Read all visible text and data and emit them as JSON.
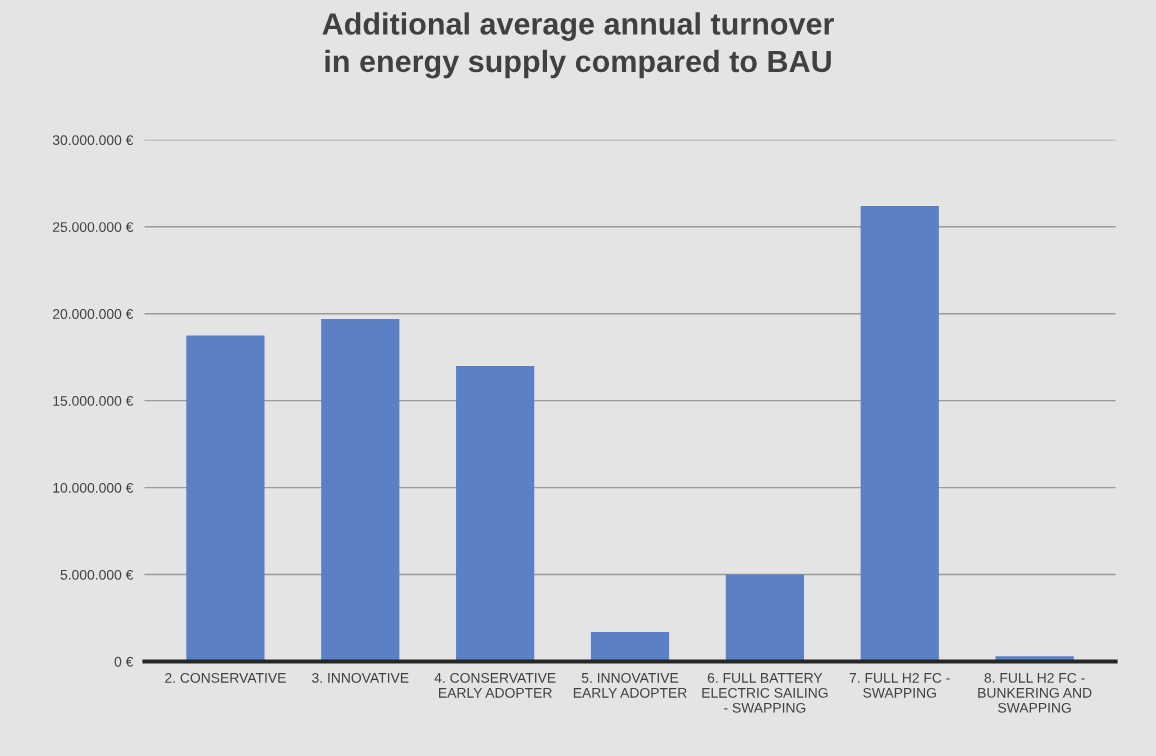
{
  "chart_data": {
    "type": "bar",
    "title": "Additional average annual turnover\nin energy supply compared to BAU",
    "categories": [
      "2. CONSERVATIVE",
      "3. INNOVATIVE",
      "4. CONSERVATIVE\nEARLY ADOPTER",
      "5. INNOVATIVE\nEARLY ADOPTER",
      "6. FULL BATTERY\nELECTRIC SAILING\n- SWAPPING",
      "7. FULL H2 FC -\nSWAPPING",
      "8. FULL H2 FC -\nBUNKERING AND\nSWAPPING"
    ],
    "values": [
      18750000,
      19700000,
      17000000,
      1700000,
      5000000,
      26200000,
      300000
    ],
    "color": "#5b80c6",
    "ylim": [
      0,
      30000000
    ],
    "yticks": [
      {
        "value": 0,
        "label": "0 €"
      },
      {
        "value": 5000000,
        "label": "5.000.000 €"
      },
      {
        "value": 10000000,
        "label": "10.000.000 €"
      },
      {
        "value": 15000000,
        "label": "15.000.000 €"
      },
      {
        "value": 20000000,
        "label": "20.000.000 €"
      },
      {
        "value": 25000000,
        "label": "25.000.000 €"
      },
      {
        "value": 30000000,
        "label": "30.000.000 €"
      }
    ],
    "grid": "y"
  }
}
